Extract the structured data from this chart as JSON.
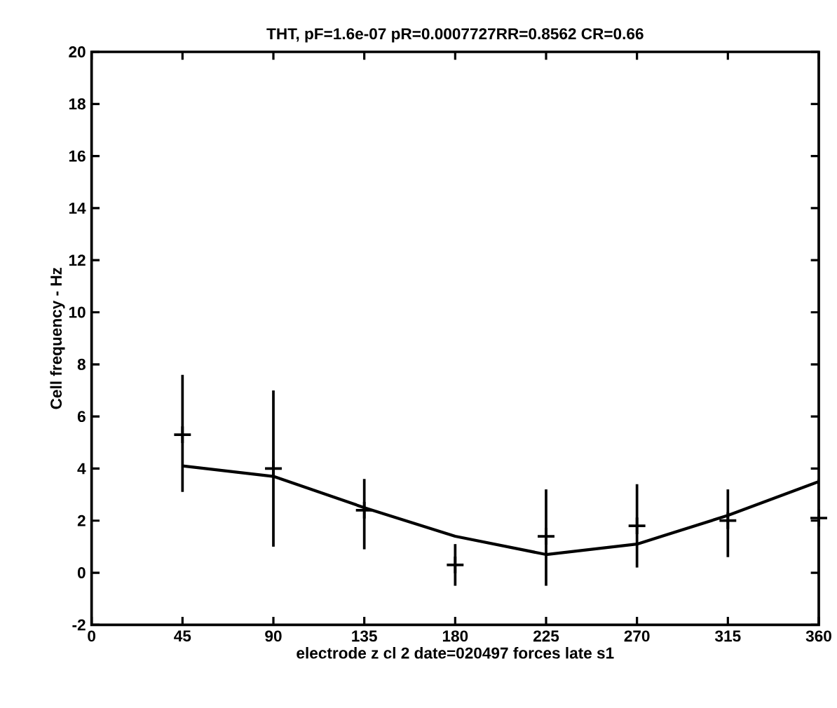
{
  "chart_data": {
    "type": "scatter",
    "title": "THT, pF=1.6e-07 pR=0.0007727RR=0.8562 CR=0.66",
    "xlabel": "electrode z cl 2  date=020497  forces late  s1",
    "ylabel": "Cell frequency - Hz",
    "x": [
      45,
      90,
      135,
      180,
      225,
      270,
      315,
      360
    ],
    "series": [
      {
        "color": "#000000",
        "marker": "cross",
        "values": [
          5.3,
          4.0,
          2.4,
          0.3,
          1.4,
          1.8,
          2.0,
          2.1
        ],
        "errors": [
          [
            3.1,
            7.6
          ],
          [
            1.0,
            7.0
          ],
          [
            0.9,
            3.6
          ],
          [
            -0.5,
            1.1
          ],
          [
            -0.5,
            3.2
          ],
          [
            0.2,
            3.4
          ],
          [
            0.6,
            3.2
          ],
          [
            -0.1,
            3.6
          ]
        ]
      },
      {
        "type": "line",
        "color": "#000000",
        "line_style": "solid",
        "values": [
          4.1,
          3.7,
          2.5,
          1.4,
          0.7,
          1.1,
          2.2,
          3.5
        ]
      }
    ],
    "xlim": [
      0,
      360
    ],
    "ylim": [
      -2,
      20
    ],
    "xticks": [
      0,
      45,
      90,
      135,
      180,
      225,
      270,
      315,
      360
    ],
    "yticks": [
      -2,
      0,
      2,
      4,
      6,
      8,
      10,
      12,
      14,
      16,
      18,
      20
    ],
    "grid": false
  }
}
